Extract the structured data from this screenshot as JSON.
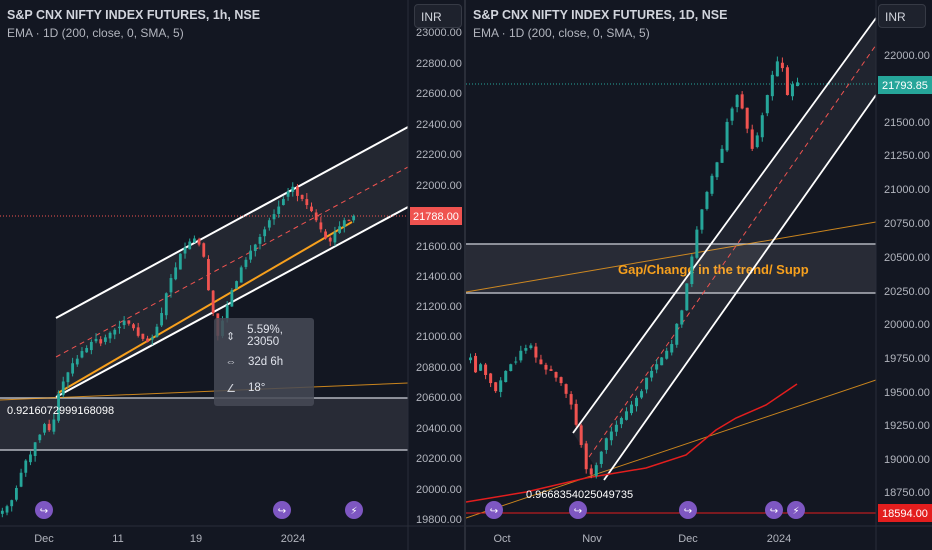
{
  "left_chart": {
    "title": "S&P CNX NIFTY INDEX FUTURES, 1h, NSE",
    "subtitle": "EMA · 1D (200, close, 0, SMA, 5)",
    "currency": "INR",
    "price_labels": [
      "23000.00",
      "22800.00",
      "22600.00",
      "22400.00",
      "22200.00",
      "22000.00",
      "21600.00",
      "21400.00",
      "21200.00",
      "21000.00",
      "20800.00",
      "20600.00",
      "20400.00",
      "20200.00",
      "20000.00",
      "19800.00"
    ],
    "current_price": "21788.00",
    "time_labels": [
      "Dec",
      "11",
      "19",
      "2024"
    ],
    "fib_label": "0.9216072999168098",
    "measure_tooltip": {
      "change": "5.59%, 23050",
      "duration": "32d 6h",
      "angle": "18°"
    }
  },
  "right_chart": {
    "title": "S&P CNX NIFTY INDEX FUTURES, 1D, NSE",
    "subtitle": "EMA · 1D (200, close, 0, SMA, 5)",
    "currency": "INR",
    "price_labels": [
      "22000.00",
      "21500.00",
      "21250.00",
      "21000.00",
      "20750.00",
      "20500.00",
      "20250.00",
      "20000.00",
      "19750.00",
      "19500.00",
      "19250.00",
      "19000.00",
      "18750.00"
    ],
    "current_price": "21793.85",
    "support_price": "18594.00",
    "time_labels": [
      "Oct",
      "Nov",
      "Dec",
      "2024"
    ],
    "fib_label": "0.9668354025049735",
    "zone_annotation": "Gap/Change in the trend/ Supp"
  },
  "colors": {
    "background": "#131722",
    "up": "#26a69a",
    "down": "#ef5350",
    "channel": "#ffffff",
    "trendline": "#f7a01d",
    "ema": "#e31e1e"
  },
  "chart_data": [
    {
      "type": "candlestick",
      "title": "S&P CNX NIFTY INDEX FUTURES, 1h, NSE",
      "timeframe": "1h",
      "ylim": [
        19750,
        23050
      ],
      "x_ticks": [
        "Dec",
        "11",
        "19",
        "2024"
      ],
      "series": [
        {
          "name": "Price",
          "closes": [
            19850,
            19880,
            19920,
            20000,
            20100,
            20180,
            20220,
            20300,
            20350,
            20420,
            20380,
            20450,
            20620,
            20700,
            20760,
            20820,
            20850,
            20900,
            20920,
            20960,
            20980,
            20950,
            20990,
            21020,
            21040,
            21060,
            21100,
            21080,
            21050,
            21000,
            20980,
            20960,
            20990,
            21060,
            21150,
            21280,
            21380,
            21450,
            21540,
            21580,
            21620,
            21640,
            21600,
            21520,
            21300,
            21150,
            21000,
            21100,
            21200,
            21300,
            21360,
            21450,
            21500,
            21560,
            21600,
            21650,
            21700,
            21760,
            21800,
            21850,
            21900,
            21950,
            21980,
            21920,
            21900,
            21860,
            21820,
            21760,
            21700,
            21640,
            21620,
            21680,
            21720,
            21760,
            21760,
            21788
          ]
        }
      ],
      "current_price": 21788.0,
      "annotations": {
        "fib_level": "0.9216072999168098",
        "measure": {
          "change": "5.59%, 23050",
          "duration": "32d 6h",
          "angle": "18°"
        }
      }
    },
    {
      "type": "candlestick",
      "title": "S&P CNX NIFTY INDEX FUTURES, 1D, NSE",
      "timeframe": "1D",
      "ylim": [
        18550,
        22250
      ],
      "x_ticks": [
        "Oct",
        "Nov",
        "Dec",
        "2024"
      ],
      "series": [
        {
          "name": "Price",
          "closes": [
            19750,
            19640,
            19700,
            19620,
            19560,
            19500,
            19580,
            19650,
            19700,
            19720,
            19800,
            19820,
            19840,
            19750,
            19700,
            19660,
            19650,
            19600,
            19560,
            19480,
            19400,
            19250,
            19100,
            18920,
            18880,
            18950,
            19050,
            19150,
            19200,
            19250,
            19300,
            19350,
            19400,
            19450,
            19500,
            19600,
            19650,
            19700,
            19750,
            19800,
            19850,
            20000,
            20100,
            20300,
            20500,
            20700,
            20850,
            20980,
            21100,
            21200,
            21300,
            21500,
            21600,
            21700,
            21600,
            21450,
            21300,
            21400,
            21550,
            21700,
            21850,
            21950,
            21900,
            21700,
            21780,
            21793.85
          ]
        },
        {
          "name": "EMA · 1D (200, close, 0, SMA, 5)",
          "values": [
            18820,
            18870,
            18920,
            18980,
            19050,
            19130,
            19200,
            19300,
            19400,
            19520
          ]
        }
      ],
      "current_price": 21793.85,
      "support_line": 18594.0,
      "zone": {
        "label": "Gap/Change in the trend/ Supp",
        "low": 20250,
        "high": 20600
      },
      "annotations": {
        "fib_level": "0.9668354025049735"
      }
    }
  ]
}
